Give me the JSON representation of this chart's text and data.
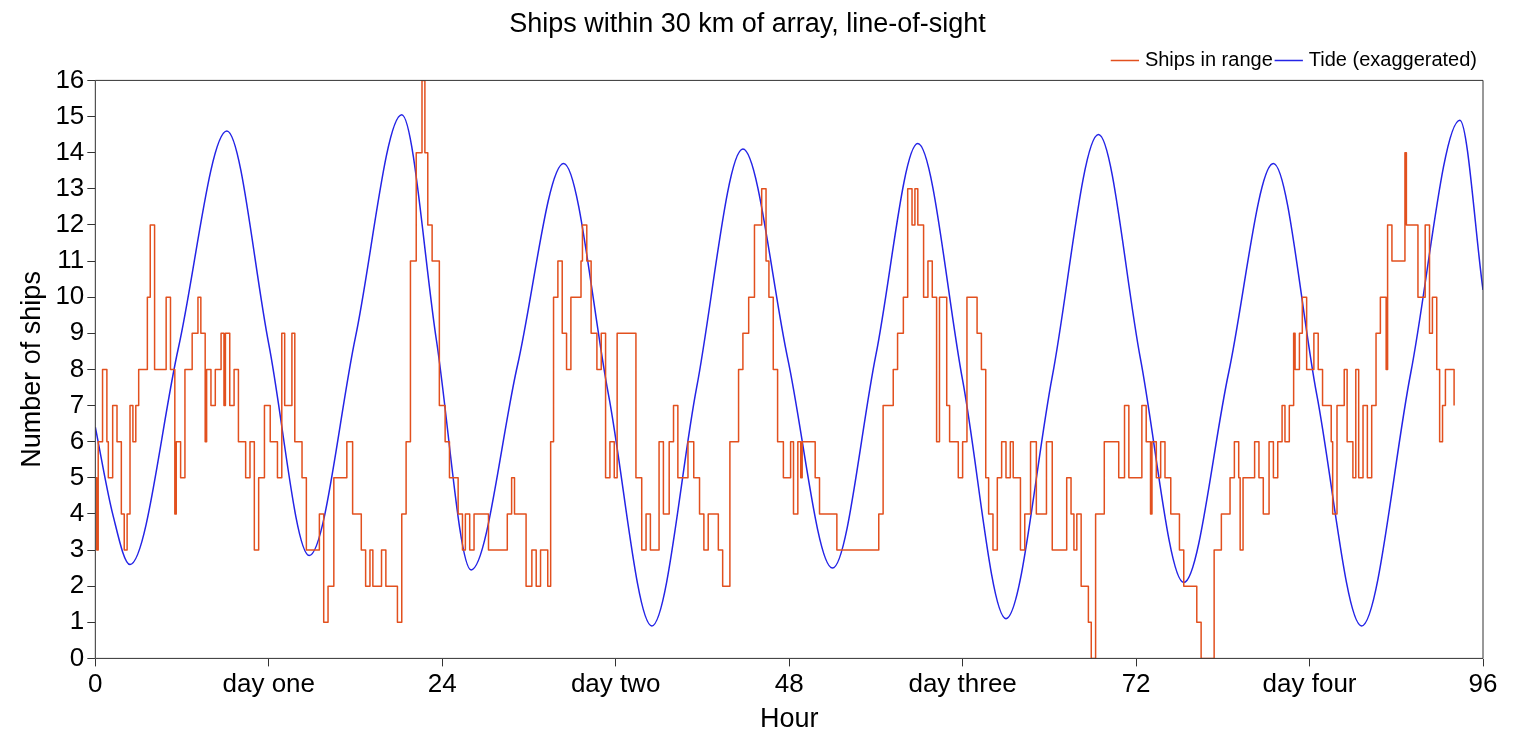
{
  "chart_data": {
    "type": "line",
    "title": "Ships within 30 km of array, line-of-sight",
    "xlabel": "Hour",
    "ylabel": "Number of ships",
    "xlim": [
      0,
      96
    ],
    "xticks": [
      0,
      {
        "value": 12,
        "label": "day one"
      },
      24,
      {
        "value": 36,
        "label": "day two"
      },
      48,
      {
        "value": 60,
        "label": "day three"
      },
      72,
      {
        "value": 84,
        "label": "day four"
      },
      96
    ],
    "ylim": [
      0,
      16
    ],
    "yticks": [
      0,
      1,
      2,
      3,
      4,
      5,
      6,
      7,
      8,
      9,
      10,
      11,
      12,
      13,
      14,
      15,
      16
    ],
    "grid": false,
    "legend": "top right",
    "marker": "none",
    "line_style": "solid",
    "series": [
      {
        "name": "Ships in range",
        "type": "step",
        "color": "#e2501e",
        "x": [
          0,
          0.1,
          0.2,
          0.5,
          0.8,
          0.9,
          1.2,
          1.5,
          1.8,
          2.0,
          2.2,
          2.4,
          2.6,
          2.8,
          3.0,
          3.3,
          3.6,
          3.8,
          4.1,
          4.8,
          4.9,
          5.2,
          5.5,
          5.6,
          5.9,
          6.2,
          6.7,
          7.1,
          7.3,
          7.6,
          7.7,
          8.0,
          8.3,
          8.7,
          8.9,
          9.0,
          9.3,
          9.6,
          9.9,
          10.4,
          10.7,
          11.0,
          11.3,
          11.7,
          12.1,
          12.6,
          12.9,
          13.1,
          13.6,
          13.8,
          14.3,
          14.6,
          15.5,
          15.8,
          16.1,
          16.5,
          17.4,
          17.8,
          18.4,
          18.7,
          19.0,
          19.2,
          19.8,
          20.1,
          20.9,
          21.2,
          21.5,
          21.8,
          22.2,
          22.6,
          22.8,
          23.0,
          23.3,
          23.8,
          24.2,
          24.5,
          25.1,
          25.4,
          25.6,
          25.9,
          26.2,
          27.2,
          28.5,
          28.8,
          29.0,
          29.8,
          30.2,
          30.5,
          30.8,
          31.3,
          31.5,
          31.7,
          32.0,
          32.3,
          32.6,
          32.9,
          33.6,
          33.7,
          34.0,
          34.3,
          34.7,
          35.0,
          35.3,
          35.6,
          35.9,
          36.1,
          37.4,
          37.8,
          38.1,
          38.4,
          39.0,
          39.3,
          39.7,
          40.0,
          40.3,
          41.0,
          41.4,
          41.8,
          42.1,
          42.4,
          43.1,
          43.4,
          43.9,
          44.5,
          44.8,
          45.2,
          45.6,
          46.1,
          46.4,
          46.6,
          46.9,
          47.2,
          47.6,
          48.1,
          48.3,
          48.6,
          48.8,
          48.9,
          49.8,
          50.1,
          51.3,
          54.2,
          54.5,
          55.2,
          55.5,
          55.9,
          56.2,
          56.5,
          56.7,
          56.9,
          57.3,
          57.6,
          57.9,
          58.2,
          58.4,
          58.9,
          59.1,
          59.7,
          60.0,
          60.3,
          61.0,
          61.3,
          61.6,
          61.8,
          62.1,
          62.4,
          62.7,
          63.0,
          63.3,
          63.5,
          64.0,
          64.3,
          64.7,
          65.1,
          65.8,
          66.2,
          67.2,
          67.5,
          67.7,
          67.9,
          68.2,
          68.7,
          68.9,
          69.2,
          69.8,
          70.8,
          71.2,
          71.5,
          72.4,
          72.7,
          73.0,
          73.1,
          73.4,
          73.7,
          74.0,
          74.4,
          75.0,
          75.3,
          76.2,
          76.5,
          77.4,
          77.9,
          78.5,
          78.8,
          79.1,
          79.2,
          79.4,
          80.2,
          80.5,
          80.8,
          81.2,
          81.5,
          81.8,
          82.1,
          82.3,
          82.6,
          82.9,
          83.0,
          83.3,
          83.5,
          83.8,
          84.3,
          84.6,
          84.9,
          85.5,
          85.6,
          85.9,
          86.4,
          86.6,
          87.0,
          87.2,
          87.4,
          87.7,
          88.0,
          88.3,
          88.6,
          88.9,
          89.3,
          89.4,
          89.7,
          90.6,
          90.7,
          91.5,
          92.0,
          92.3,
          92.5,
          92.8,
          93.0,
          93.2,
          93.4,
          94.0
        ],
        "values": [
          5,
          3,
          6,
          8,
          6,
          5,
          7,
          6,
          4,
          3,
          4,
          7,
          6,
          7,
          8,
          8,
          10,
          12,
          8,
          8,
          10,
          8,
          4,
          6,
          5,
          8,
          9,
          10,
          9,
          6,
          8,
          7,
          8,
          9,
          7,
          9,
          7,
          8,
          6,
          5,
          6,
          3,
          5,
          7,
          6,
          5,
          9,
          7,
          9,
          6,
          5,
          3,
          4,
          1,
          2,
          5,
          6,
          4,
          3,
          2,
          3,
          2,
          3,
          2,
          1,
          4,
          6,
          11,
          14,
          16,
          14,
          12,
          11,
          7,
          6,
          5,
          4,
          3,
          4,
          3,
          4,
          3,
          4,
          5,
          4,
          2,
          3,
          2,
          3,
          2,
          6,
          10,
          11,
          9,
          8,
          10,
          11,
          12,
          11,
          9,
          8,
          9,
          5,
          6,
          5,
          9,
          5,
          3,
          4,
          3,
          6,
          4,
          6,
          7,
          5,
          6,
          5,
          4,
          3,
          4,
          3,
          2,
          6,
          8,
          9,
          10,
          12,
          13,
          11,
          10,
          8,
          6,
          5,
          6,
          4,
          6,
          5,
          6,
          5,
          4,
          3,
          4,
          7,
          8,
          9,
          10,
          13,
          12,
          13,
          12,
          10,
          11,
          10,
          6,
          10,
          7,
          6,
          5,
          6,
          10,
          9,
          8,
          5,
          4,
          3,
          5,
          6,
          5,
          6,
          5,
          3,
          4,
          6,
          4,
          6,
          3,
          5,
          4,
          3,
          4,
          2,
          1,
          0,
          4,
          6,
          5,
          7,
          5,
          7,
          6,
          4,
          6,
          5,
          6,
          5,
          4,
          3,
          2,
          1,
          0,
          3,
          4,
          5,
          6,
          5,
          3,
          5,
          6,
          5,
          4,
          6,
          5,
          6,
          7,
          6,
          7,
          9,
          8,
          9,
          10,
          8,
          9,
          8,
          7,
          6,
          4,
          7,
          8,
          6,
          5,
          8,
          5,
          7,
          5,
          7,
          9,
          10,
          8,
          12,
          11,
          14,
          12,
          10,
          12,
          9,
          10,
          8,
          6,
          7,
          8,
          7
        ]
      },
      {
        "name": "Tide (exaggerated)",
        "type": "line",
        "color": "#2424e6",
        "x": [
          0,
          1.2,
          2.4,
          5.75,
          9.1,
          12.0,
          14.8,
          18.0,
          21.2,
          23.6,
          26.0,
          29.2,
          32.4,
          35.5,
          38.5,
          41.6,
          44.8,
          47.9,
          51.0,
          54.0,
          56.9,
          60.0,
          63.0,
          66.2,
          69.4,
          72.3,
          75.3,
          78.4,
          81.5,
          84.5,
          87.6,
          91.0,
          94.4,
          96
        ],
        "values": [
          6.4,
          4.0,
          2.6,
          8.6,
          14.6,
          8.7,
          2.85,
          8.9,
          15.05,
          8.8,
          2.45,
          8.1,
          13.7,
          7.3,
          0.9,
          7.5,
          14.1,
          8.3,
          2.5,
          8.4,
          14.25,
          7.7,
          1.1,
          7.8,
          14.5,
          8.3,
          2.1,
          7.9,
          13.7,
          7.3,
          0.9,
          7.9,
          14.9,
          10.2
        ]
      }
    ]
  }
}
